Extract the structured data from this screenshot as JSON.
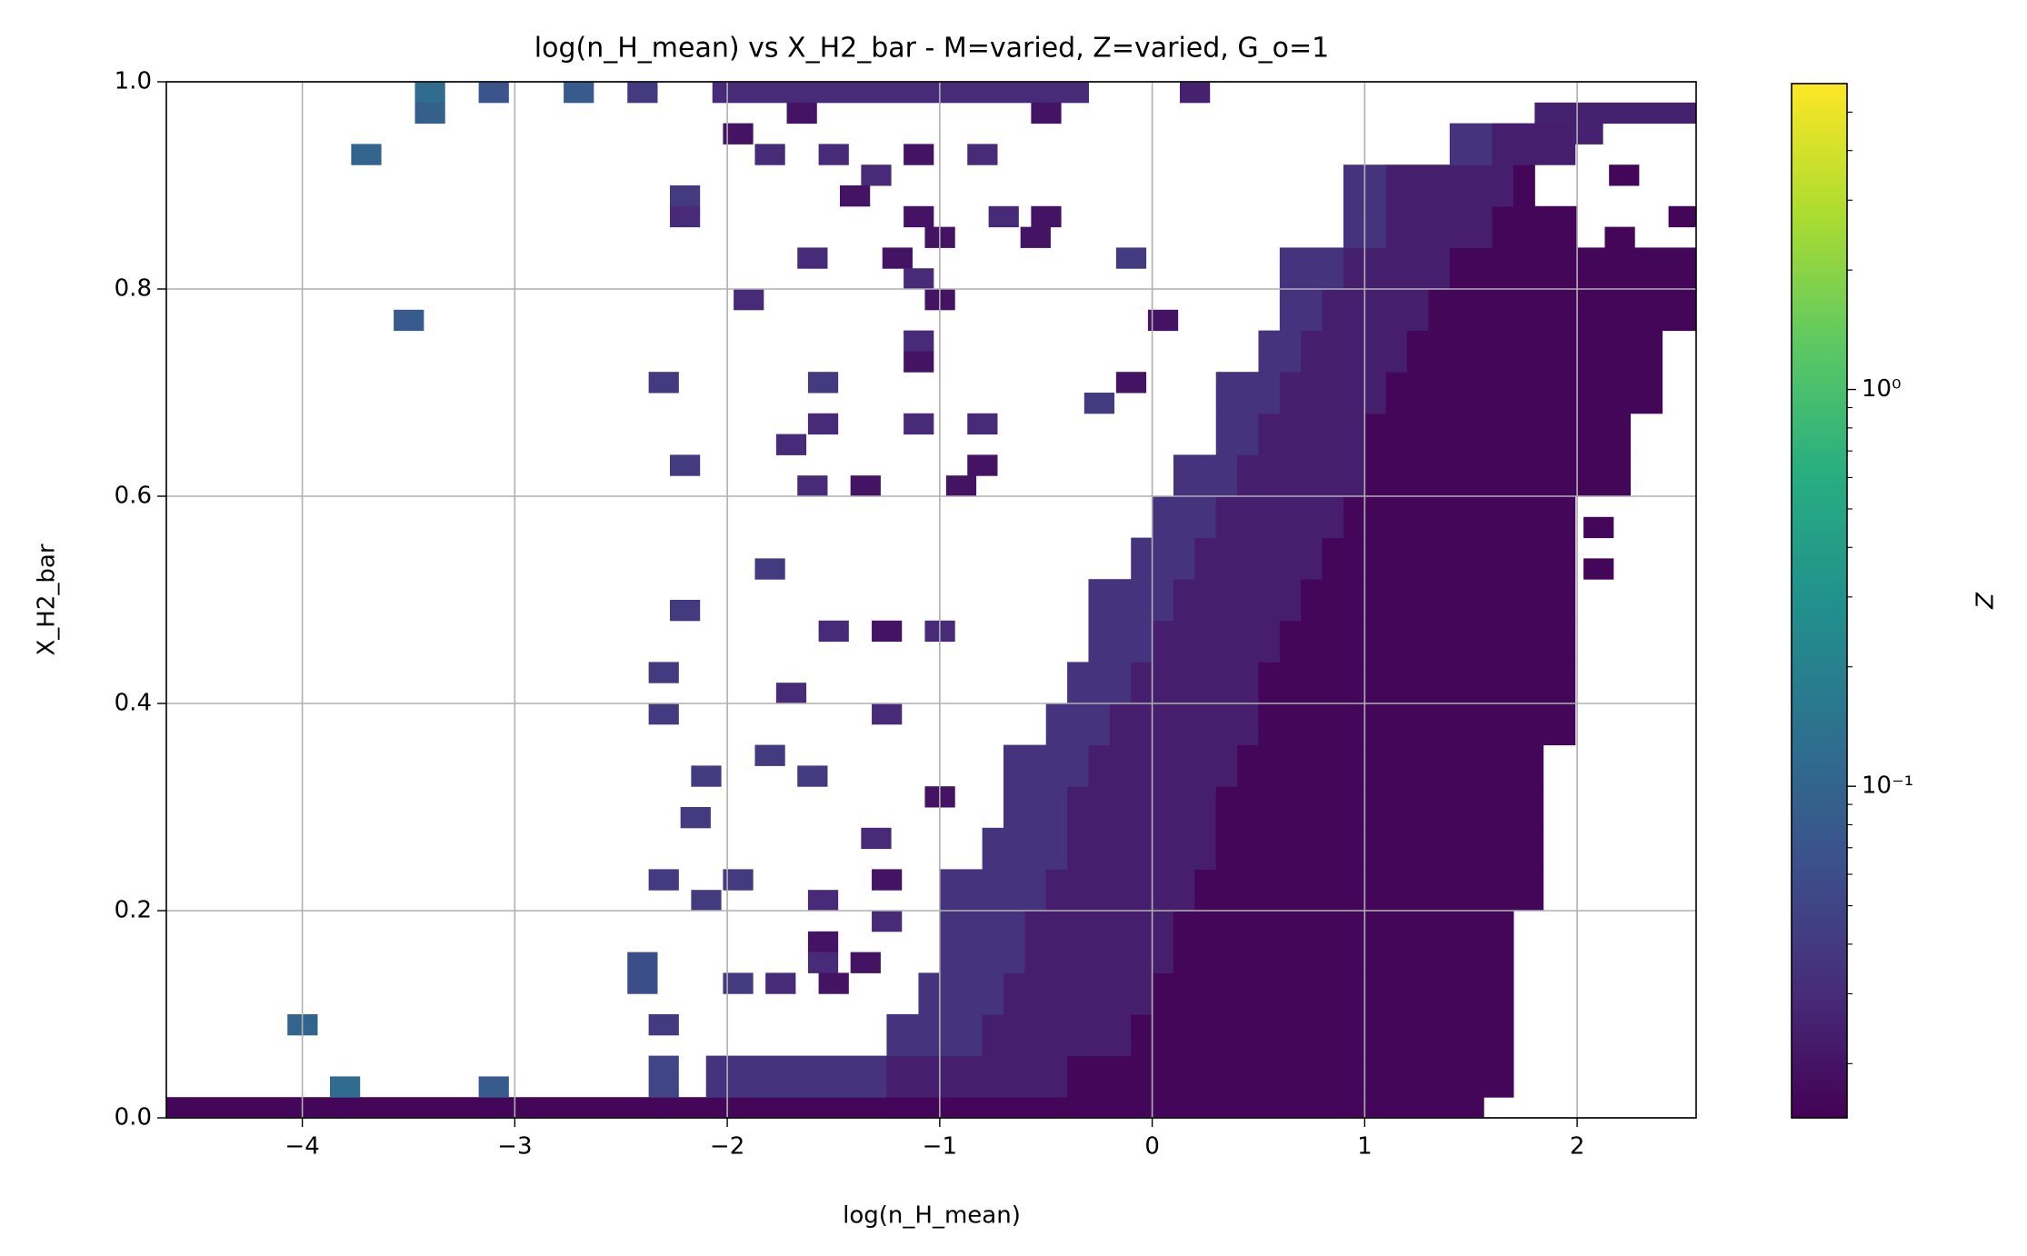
{
  "chart_data": {
    "type": "heatmap",
    "title": "log(n_H_mean) vs X_H2_bar - M=varied, Z=varied, G_o=1",
    "xlabel": "log(n_H_mean)",
    "ylabel": "X_H2_bar",
    "colorbar_label": "Z",
    "colormap": "viridis",
    "colorbar_log": true,
    "grid": true,
    "xlim": [
      -4.64,
      2.56
    ],
    "ylim": [
      0,
      1
    ],
    "xticks": [
      {
        "value": -4,
        "label": "−4"
      },
      {
        "value": -3,
        "label": "−3"
      },
      {
        "value": -2,
        "label": "−2"
      },
      {
        "value": -1,
        "label": "−1"
      },
      0,
      1,
      2
    ],
    "yticks": [
      {
        "value": 0,
        "label": "0.0"
      },
      0.2,
      0.4,
      0.6,
      0.8,
      {
        "value": 1,
        "label": "1.0"
      }
    ],
    "zlim": [
      0.0146,
      5.9
    ],
    "zticks": [
      {
        "value": 0.1,
        "label": "10⁻¹"
      },
      {
        "value": 1,
        "label": "10⁰"
      }
    ],
    "zticks_minor": [
      0.02,
      0.03,
      0.04,
      0.05,
      0.06,
      0.07,
      0.08,
      0.09,
      0.2,
      0.3,
      0.4,
      0.5,
      0.6,
      0.7,
      0.8,
      0.9,
      2,
      3,
      4,
      5
    ],
    "cells": [
      [
        -4.64,
        1.56,
        0,
        0.02,
        0.016
      ],
      [
        -2.1,
        -1.25,
        0.02,
        0.06,
        0.035
      ],
      [
        -1.25,
        -0.4,
        0.02,
        0.06,
        0.024
      ],
      [
        -0.4,
        1.7,
        0.02,
        0.06,
        0.016
      ],
      [
        -1.25,
        -0.8,
        0.06,
        0.1,
        0.035
      ],
      [
        -0.8,
        -0.1,
        0.06,
        0.1,
        0.024
      ],
      [
        -0.1,
        1.7,
        0.06,
        0.1,
        0.016
      ],
      [
        -1.1,
        -0.7,
        0.1,
        0.14,
        0.035
      ],
      [
        -0.7,
        0,
        0.1,
        0.14,
        0.024
      ],
      [
        0,
        1.7,
        0.1,
        0.14,
        0.016
      ],
      [
        -1,
        -0.6,
        0.14,
        0.2,
        0.035
      ],
      [
        -0.6,
        0.1,
        0.14,
        0.2,
        0.024
      ],
      [
        0.1,
        1.7,
        0.14,
        0.2,
        0.016
      ],
      [
        -1,
        -0.5,
        0.2,
        0.24,
        0.035
      ],
      [
        -0.5,
        0.2,
        0.2,
        0.24,
        0.024
      ],
      [
        0.2,
        1.84,
        0.2,
        0.24,
        0.016
      ],
      [
        -0.8,
        -0.4,
        0.24,
        0.28,
        0.035
      ],
      [
        -0.4,
        0.3,
        0.24,
        0.28,
        0.024
      ],
      [
        0.3,
        1.84,
        0.24,
        0.28,
        0.016
      ],
      [
        -0.7,
        -0.4,
        0.28,
        0.32,
        0.035
      ],
      [
        -0.4,
        0.3,
        0.28,
        0.32,
        0.024
      ],
      [
        0.3,
        1.84,
        0.28,
        0.32,
        0.016
      ],
      [
        -0.7,
        -0.3,
        0.32,
        0.36,
        0.035
      ],
      [
        -0.3,
        0.4,
        0.32,
        0.36,
        0.024
      ],
      [
        0.4,
        1.84,
        0.32,
        0.36,
        0.016
      ],
      [
        -0.5,
        -0.2,
        0.36,
        0.4,
        0.035
      ],
      [
        -0.2,
        0.5,
        0.36,
        0.4,
        0.024
      ],
      [
        0.5,
        1.99,
        0.36,
        0.4,
        0.016
      ],
      [
        -0.4,
        -0.1,
        0.4,
        0.44,
        0.035
      ],
      [
        -0.1,
        0.5,
        0.4,
        0.44,
        0.024
      ],
      [
        0.5,
        1.99,
        0.4,
        0.44,
        0.016
      ],
      [
        -0.3,
        0,
        0.44,
        0.48,
        0.035
      ],
      [
        0,
        0.6,
        0.44,
        0.48,
        0.024
      ],
      [
        0.6,
        1.99,
        0.44,
        0.48,
        0.016
      ],
      [
        -0.3,
        0.1,
        0.48,
        0.52,
        0.035
      ],
      [
        0.1,
        0.7,
        0.48,
        0.52,
        0.024
      ],
      [
        0.7,
        1.99,
        0.48,
        0.52,
        0.016
      ],
      [
        -0.1,
        0.2,
        0.52,
        0.56,
        0.035
      ],
      [
        0.2,
        0.8,
        0.52,
        0.56,
        0.024
      ],
      [
        0.8,
        1.99,
        0.52,
        0.56,
        0.016
      ],
      [
        0,
        0.3,
        0.56,
        0.6,
        0.035
      ],
      [
        0.3,
        0.9,
        0.56,
        0.6,
        0.024
      ],
      [
        0.9,
        1.99,
        0.56,
        0.6,
        0.016
      ],
      [
        0.1,
        0.4,
        0.6,
        0.64,
        0.035
      ],
      [
        0.4,
        1,
        0.6,
        0.64,
        0.024
      ],
      [
        1,
        2.25,
        0.6,
        0.64,
        0.016
      ],
      [
        0.3,
        0.5,
        0.64,
        0.68,
        0.035
      ],
      [
        0.5,
        1,
        0.64,
        0.68,
        0.024
      ],
      [
        1,
        2.25,
        0.64,
        0.68,
        0.016
      ],
      [
        0.3,
        0.6,
        0.68,
        0.72,
        0.035
      ],
      [
        0.6,
        1.1,
        0.68,
        0.72,
        0.024
      ],
      [
        1.1,
        2.4,
        0.68,
        0.72,
        0.016
      ],
      [
        0.5,
        0.7,
        0.72,
        0.76,
        0.035
      ],
      [
        0.7,
        1.2,
        0.72,
        0.76,
        0.024
      ],
      [
        1.2,
        2.4,
        0.72,
        0.76,
        0.016
      ],
      [
        0.6,
        0.8,
        0.76,
        0.8,
        0.035
      ],
      [
        0.8,
        1.3,
        0.76,
        0.8,
        0.024
      ],
      [
        1.3,
        2.56,
        0.76,
        0.8,
        0.016
      ],
      [
        0.6,
        0.9,
        0.8,
        0.84,
        0.035
      ],
      [
        0.9,
        1.4,
        0.8,
        0.84,
        0.024
      ],
      [
        1.4,
        2.56,
        0.8,
        0.84,
        0.016
      ],
      [
        0.9,
        1.1,
        0.84,
        0.88,
        0.035
      ],
      [
        1.1,
        1.6,
        0.84,
        0.88,
        0.024
      ],
      [
        1.6,
        2,
        0.84,
        0.88,
        0.016
      ],
      [
        0.9,
        1.1,
        0.88,
        0.92,
        0.035
      ],
      [
        1.1,
        1.7,
        0.88,
        0.92,
        0.024
      ],
      [
        1.7,
        1.8,
        0.88,
        0.92,
        0.016
      ],
      [
        1.4,
        1.6,
        0.92,
        0.96,
        0.035
      ],
      [
        1.6,
        1.99,
        0.92,
        0.96,
        0.024
      ],
      [
        1.8,
        2.56,
        0.96,
        0.98,
        0.025
      ],
      [
        1.98,
        2.12,
        0.94,
        0.96,
        0.025
      ],
      [
        2.15,
        2.29,
        0.9,
        0.92,
        0.016
      ],
      [
        2.43,
        2.56,
        0.86,
        0.88,
        0.016
      ],
      [
        2.13,
        2.27,
        0.84,
        0.86,
        0.016
      ],
      [
        1.98,
        2.12,
        0.6,
        0.62,
        0.016
      ],
      [
        2.03,
        2.17,
        0.56,
        0.58,
        0.016
      ],
      [
        2.03,
        2.17,
        0.52,
        0.54,
        0.016
      ],
      [
        -3.47,
        -3.33,
        0.98,
        1,
        0.12
      ],
      [
        -3.47,
        -3.33,
        0.96,
        0.98,
        0.09
      ],
      [
        -3.17,
        -3.03,
        0.98,
        1,
        0.07
      ],
      [
        -2.77,
        -2.63,
        0.98,
        1,
        0.08
      ],
      [
        -2.47,
        -2.33,
        0.98,
        1,
        0.04
      ],
      [
        -2.07,
        -0.3,
        0.98,
        1,
        0.03
      ],
      [
        0.13,
        0.27,
        0.98,
        1,
        0.025
      ],
      [
        -0.57,
        -0.43,
        0.96,
        0.98,
        0.02
      ],
      [
        -1.72,
        -1.58,
        0.96,
        0.98,
        0.02
      ],
      [
        -2.02,
        -1.88,
        0.94,
        0.96,
        0.02
      ],
      [
        -3.77,
        -3.63,
        0.92,
        0.94,
        0.1
      ],
      [
        -1.87,
        -1.73,
        0.92,
        0.94,
        0.03
      ],
      [
        -1.57,
        -1.43,
        0.92,
        0.94,
        0.03
      ],
      [
        -1.17,
        -1.03,
        0.92,
        0.94,
        0.02
      ],
      [
        -0.87,
        -0.73,
        0.92,
        0.94,
        0.03
      ],
      [
        -1.37,
        -1.23,
        0.9,
        0.92,
        0.03
      ],
      [
        -2.27,
        -2.13,
        0.88,
        0.9,
        0.04
      ],
      [
        -1.47,
        -1.33,
        0.88,
        0.9,
        0.02
      ],
      [
        -1.17,
        -1.03,
        0.86,
        0.88,
        0.02
      ],
      [
        -0.77,
        -0.63,
        0.86,
        0.88,
        0.03
      ],
      [
        -0.57,
        -0.43,
        0.86,
        0.88,
        0.02
      ],
      [
        -2.27,
        -2.13,
        0.86,
        0.88,
        0.03
      ],
      [
        -1.07,
        -0.93,
        0.84,
        0.86,
        0.02
      ],
      [
        -0.62,
        -0.48,
        0.84,
        0.86,
        0.02
      ],
      [
        -1.67,
        -1.53,
        0.82,
        0.84,
        0.03
      ],
      [
        -1.27,
        -1.13,
        0.82,
        0.84,
        0.02
      ],
      [
        -0.17,
        -0.03,
        0.82,
        0.84,
        0.04
      ],
      [
        -1.17,
        -1.03,
        0.8,
        0.82,
        0.03
      ],
      [
        -1.97,
        -1.83,
        0.78,
        0.8,
        0.03
      ],
      [
        -1.07,
        -0.93,
        0.78,
        0.8,
        0.02
      ],
      [
        -3.57,
        -3.43,
        0.76,
        0.78,
        0.08
      ],
      [
        -0.02,
        0.12,
        0.76,
        0.78,
        0.02
      ],
      [
        -1.17,
        -1.03,
        0.74,
        0.76,
        0.03
      ],
      [
        -1.17,
        -1.03,
        0.72,
        0.74,
        0.02
      ],
      [
        -2.37,
        -2.23,
        0.7,
        0.72,
        0.04
      ],
      [
        -1.62,
        -1.48,
        0.7,
        0.72,
        0.04
      ],
      [
        -0.17,
        -0.03,
        0.7,
        0.72,
        0.02
      ],
      [
        -0.32,
        -0.18,
        0.68,
        0.7,
        0.04
      ],
      [
        -1.62,
        -1.48,
        0.66,
        0.68,
        0.03
      ],
      [
        -1.17,
        -1.03,
        0.66,
        0.68,
        0.03
      ],
      [
        -0.87,
        -0.73,
        0.66,
        0.68,
        0.03
      ],
      [
        -1.77,
        -1.63,
        0.64,
        0.66,
        0.03
      ],
      [
        -2.27,
        -2.13,
        0.62,
        0.64,
        0.04
      ],
      [
        -0.87,
        -0.73,
        0.62,
        0.64,
        0.02
      ],
      [
        -1.67,
        -1.53,
        0.6,
        0.62,
        0.03
      ],
      [
        -1.42,
        -1.28,
        0.6,
        0.62,
        0.02
      ],
      [
        -0.97,
        -0.83,
        0.6,
        0.62,
        0.02
      ],
      [
        -1.87,
        -1.73,
        0.52,
        0.54,
        0.04
      ],
      [
        -2.27,
        -2.13,
        0.48,
        0.5,
        0.04
      ],
      [
        -1.57,
        -1.43,
        0.46,
        0.48,
        0.03
      ],
      [
        -1.32,
        -1.18,
        0.46,
        0.48,
        0.02
      ],
      [
        -1.07,
        -0.93,
        0.46,
        0.48,
        0.03
      ],
      [
        -2.37,
        -2.23,
        0.42,
        0.44,
        0.04
      ],
      [
        -1.77,
        -1.63,
        0.4,
        0.42,
        0.03
      ],
      [
        -2.37,
        -2.23,
        0.38,
        0.4,
        0.04
      ],
      [
        -1.32,
        -1.18,
        0.38,
        0.4,
        0.03
      ],
      [
        -1.87,
        -1.73,
        0.34,
        0.36,
        0.04
      ],
      [
        -2.17,
        -2.03,
        0.32,
        0.34,
        0.04
      ],
      [
        -1.67,
        -1.53,
        0.32,
        0.34,
        0.04
      ],
      [
        -1.07,
        -0.93,
        0.3,
        0.32,
        0.02
      ],
      [
        -2.22,
        -2.08,
        0.28,
        0.3,
        0.04
      ],
      [
        -1.37,
        -1.23,
        0.26,
        0.28,
        0.03
      ],
      [
        -1.32,
        -1.18,
        0.22,
        0.24,
        0.02
      ],
      [
        -2.37,
        -2.23,
        0.22,
        0.24,
        0.04
      ],
      [
        -2.02,
        -1.88,
        0.22,
        0.24,
        0.04
      ],
      [
        -2.17,
        -2.03,
        0.2,
        0.22,
        0.04
      ],
      [
        -1.62,
        -1.48,
        0.2,
        0.22,
        0.03
      ],
      [
        -1.32,
        -1.18,
        0.18,
        0.2,
        0.03
      ],
      [
        -1.62,
        -1.48,
        0.16,
        0.18,
        0.02
      ],
      [
        -1.62,
        -1.48,
        0.14,
        0.16,
        0.03
      ],
      [
        -1.42,
        -1.28,
        0.14,
        0.16,
        0.02
      ],
      [
        -2.47,
        -2.33,
        0.14,
        0.16,
        0.06
      ],
      [
        -2.47,
        -2.33,
        0.12,
        0.14,
        0.06
      ],
      [
        -2.02,
        -1.88,
        0.12,
        0.14,
        0.04
      ],
      [
        -1.82,
        -1.68,
        0.12,
        0.14,
        0.03
      ],
      [
        -1.57,
        -1.43,
        0.12,
        0.14,
        0.02
      ],
      [
        -2.37,
        -2.23,
        0.08,
        0.1,
        0.04
      ],
      [
        -4.07,
        -3.93,
        0.08,
        0.1,
        0.1
      ],
      [
        -3.87,
        -3.73,
        0.02,
        0.04,
        0.12
      ],
      [
        -3.17,
        -3.03,
        0.02,
        0.04,
        0.08
      ],
      [
        -2.37,
        -2.23,
        0.04,
        0.06,
        0.05
      ],
      [
        -2.37,
        -2.23,
        0.02,
        0.04,
        0.05
      ]
    ]
  }
}
